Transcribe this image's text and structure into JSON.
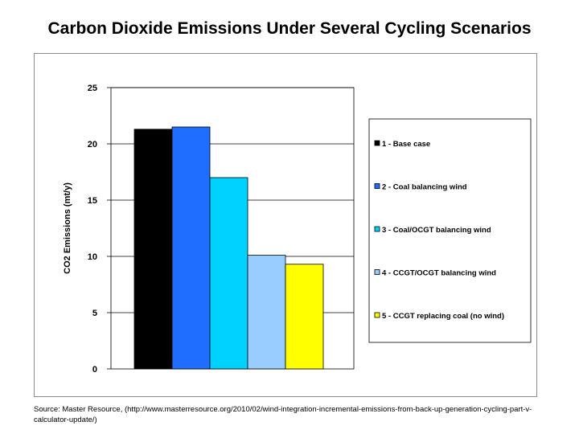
{
  "page": {
    "title": "Carbon Dioxide Emissions Under Several Cycling Scenarios",
    "source": "Source: Master Resource, (http://www.masterresource.org/2010/02/wind-integration-incremental-emissions-from-back-up-generation-cycling-part-v-calculator-update/)"
  },
  "chart_data": {
    "type": "bar",
    "title": "",
    "xlabel": "",
    "ylabel": "CO2 Emissions (mt/y)",
    "ylim": [
      0,
      25
    ],
    "yticks": [
      0,
      5,
      10,
      15,
      20,
      25
    ],
    "grid": true,
    "legend_position": "right",
    "categories": [
      "1 - Base case",
      "2 - Coal balancing wind",
      "3 - Coal/OCGT balancing wind",
      "4 - CCGT/OCGT balancing wind",
      "5 - CCGT replacing coal (no wind)"
    ],
    "values": [
      21.3,
      21.5,
      17.0,
      10.1,
      9.3
    ],
    "colors": [
      "#000000",
      "#1f6eff",
      "#00d2ff",
      "#99ccff",
      "#ffff00"
    ]
  }
}
